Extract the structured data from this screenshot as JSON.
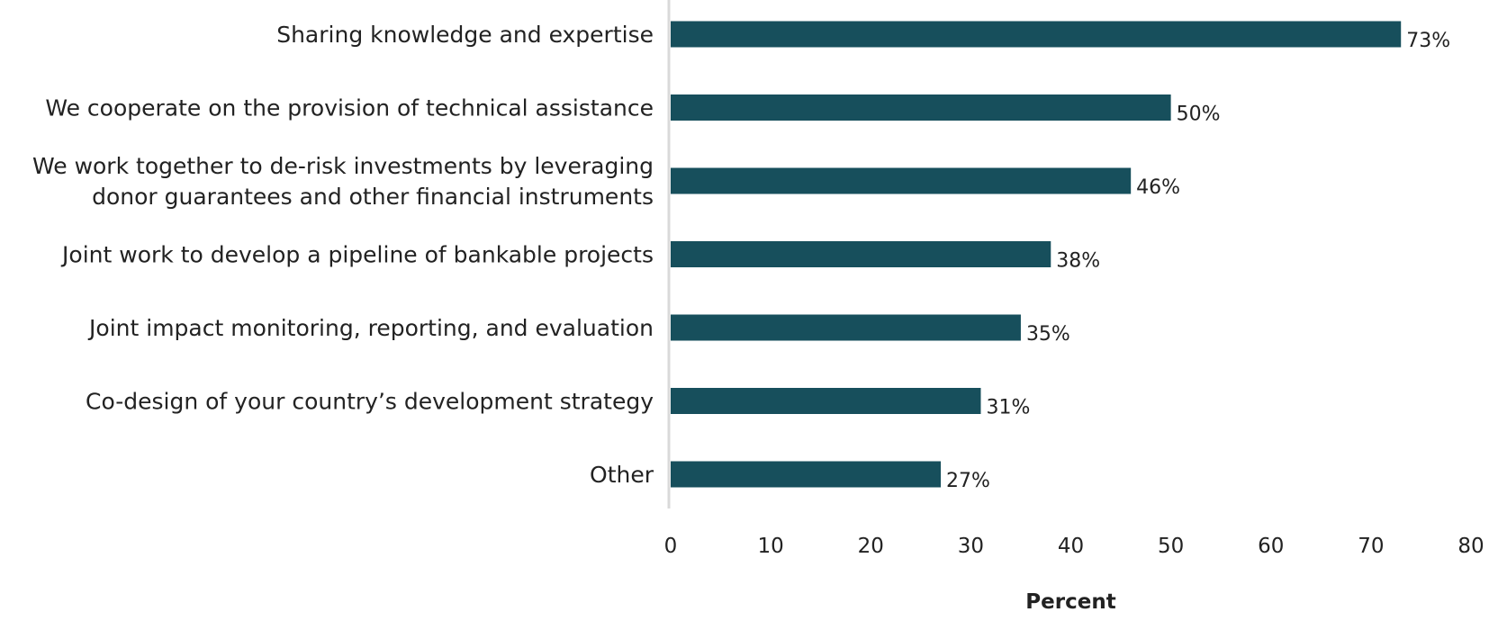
{
  "chart_data": {
    "type": "bar",
    "orientation": "horizontal",
    "title": "",
    "categories": [
      [
        "Sharing knowledge and expertise"
      ],
      [
        "We cooperate on the provision of technical assistance"
      ],
      [
        "We work together to de-risk investments by leveraging",
        "donor guarantees and other financial instruments"
      ],
      [
        "Joint work to develop a pipeline of bankable projects"
      ],
      [
        "Joint impact monitoring, reporting, and evaluation"
      ],
      [
        "Co-design of your country’s development strategy"
      ],
      [
        "Other"
      ]
    ],
    "values": [
      73,
      50,
      46,
      38,
      35,
      31,
      27
    ],
    "value_labels": [
      "73%",
      "50%",
      "46%",
      "38%",
      "35%",
      "31%",
      "27%"
    ],
    "xlabel": "Percent",
    "ylabel": "",
    "xlim": [
      0,
      80
    ],
    "xticks": [
      0,
      10,
      20,
      30,
      40,
      50,
      60,
      70,
      80
    ],
    "grid": false,
    "legend": "none",
    "colors": {
      "bar": "#174f5c",
      "axis": "#d9d9d9",
      "text": "#222222"
    }
  }
}
